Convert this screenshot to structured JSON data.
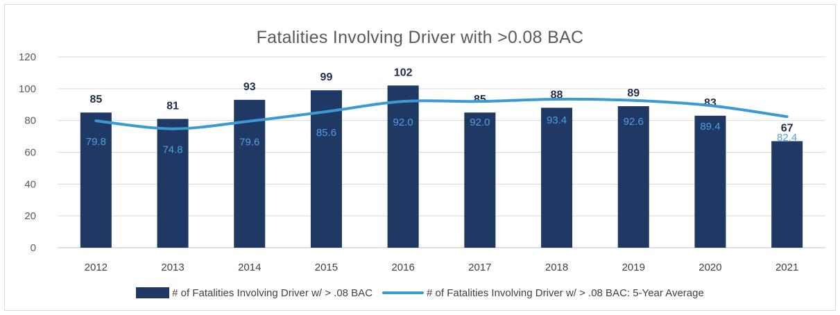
{
  "chart_data": {
    "type": "bar",
    "title": "Fatalities Involving Driver with >0.08 BAC",
    "categories": [
      "2012",
      "2013",
      "2014",
      "2015",
      "2016",
      "2017",
      "2018",
      "2019",
      "2020",
      "2021"
    ],
    "series": [
      {
        "name": "# of Fatalities Involving Driver w/ > .08 BAC",
        "type": "bar",
        "color": "#1f3864",
        "values": [
          85,
          81,
          93,
          99,
          102,
          85,
          88,
          89,
          83,
          67
        ],
        "labels": [
          "85",
          "81",
          "93",
          "99",
          "102",
          "85",
          "88",
          "89",
          "83",
          "67"
        ]
      },
      {
        "name": "# of Fatalities Involving Driver w/ > .08 BAC: 5-Year Average",
        "type": "line",
        "color": "#3b9ad4",
        "values": [
          79.8,
          74.8,
          79.6,
          85.6,
          92.0,
          92.0,
          93.4,
          92.6,
          89.4,
          82.4
        ],
        "labels": [
          "79.8",
          "74.8",
          "79.6",
          "85.6",
          "92.0",
          "92.0",
          "93.4",
          "92.6",
          "89.4",
          "82.4"
        ]
      }
    ],
    "ylim": [
      0,
      120
    ],
    "yticks": [
      "0",
      "20",
      "40",
      "60",
      "80",
      "100",
      "120"
    ],
    "grid": true,
    "legend_position": "bottom"
  }
}
